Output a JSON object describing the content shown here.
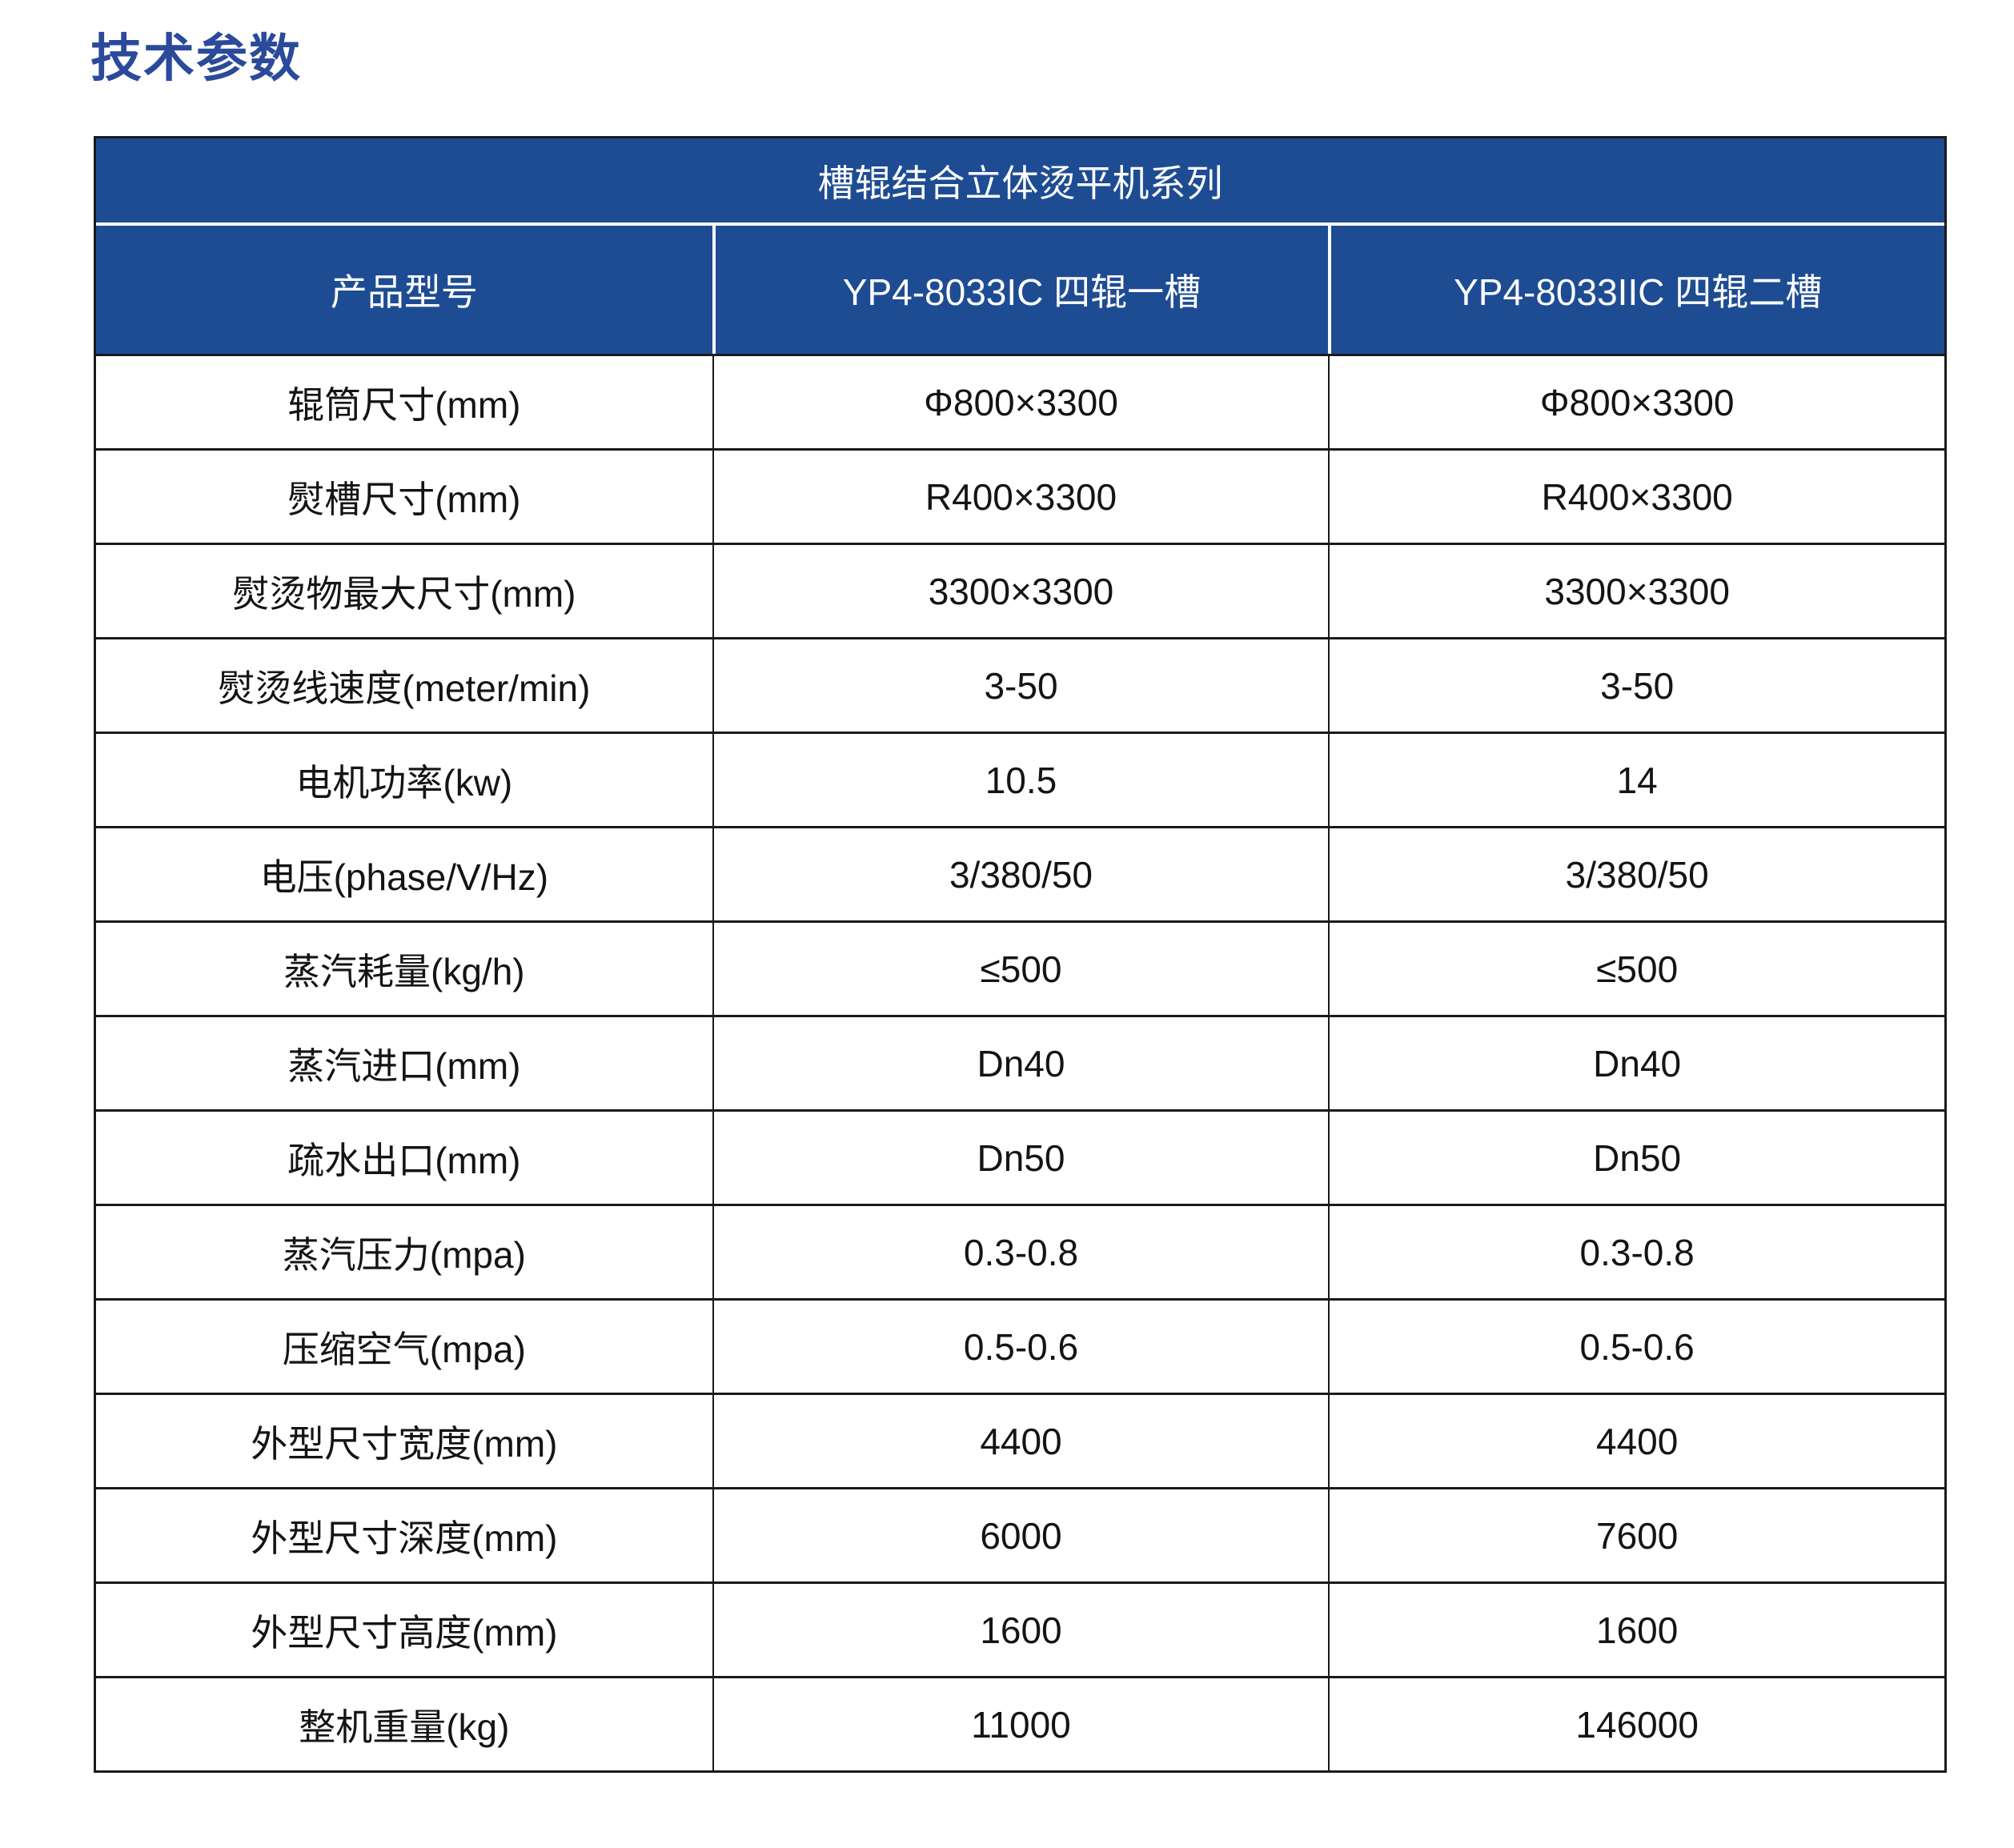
{
  "page": {
    "title": "技术参数"
  },
  "colors": {
    "title_color": "#2b4a9b",
    "header_bg": "#1e4c93",
    "header_text": "#ffffff",
    "border_color": "#1a1a1a"
  },
  "table": {
    "series_header": "槽辊结合立体烫平机系列",
    "columns": [
      "产品型号",
      "YP4-8033IC 四辊一槽",
      "YP4-8033IIC 四辊二槽"
    ],
    "rows": [
      {
        "label": "辊筒尺寸(mm)",
        "v1": "Φ800×3300",
        "v2": "Φ800×3300"
      },
      {
        "label": "熨槽尺寸(mm)",
        "v1": "R400×3300",
        "v2": "R400×3300"
      },
      {
        "label": "熨烫物最大尺寸(mm)",
        "v1": "3300×3300",
        "v2": "3300×3300"
      },
      {
        "label": "熨烫线速度(meter/min)",
        "v1": "3-50",
        "v2": "3-50"
      },
      {
        "label": "电机功率(kw)",
        "v1": "10.5",
        "v2": "14"
      },
      {
        "label": "电压(phase/V/Hz)",
        "v1": "3/380/50",
        "v2": "3/380/50"
      },
      {
        "label": "蒸汽耗量(kg/h)",
        "v1": "≤500",
        "v2": "≤500"
      },
      {
        "label": "蒸汽进口(mm)",
        "v1": "Dn40",
        "v2": "Dn40"
      },
      {
        "label": "疏水出口(mm)",
        "v1": "Dn50",
        "v2": "Dn50"
      },
      {
        "label": "蒸汽压力(mpa)",
        "v1": "0.3-0.8",
        "v2": "0.3-0.8"
      },
      {
        "label": "压缩空气(mpa)",
        "v1": "0.5-0.6",
        "v2": "0.5-0.6"
      },
      {
        "label": "外型尺寸宽度(mm)",
        "v1": "4400",
        "v2": "4400"
      },
      {
        "label": "外型尺寸深度(mm)",
        "v1": "6000",
        "v2": "7600"
      },
      {
        "label": "外型尺寸高度(mm)",
        "v1": "1600",
        "v2": "1600"
      },
      {
        "label": "整机重量(kg)",
        "v1": "11000",
        "v2": "146000"
      }
    ]
  }
}
